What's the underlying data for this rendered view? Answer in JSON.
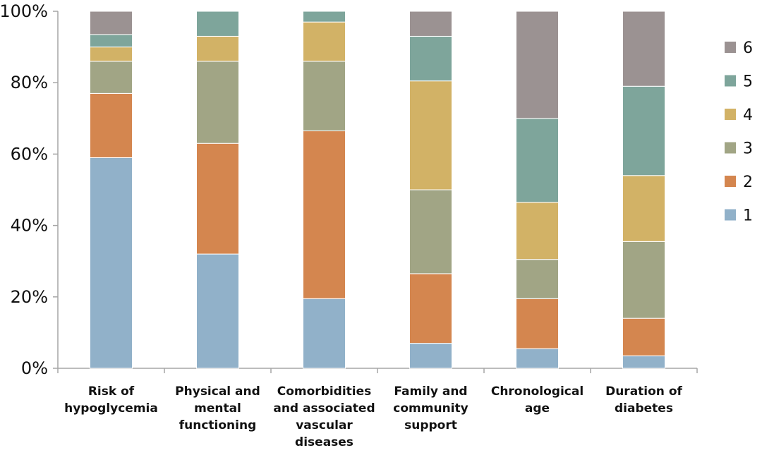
{
  "chart_data": {
    "type": "bar",
    "stacked": true,
    "percent": true,
    "title": "",
    "xlabel": "",
    "ylabel": "",
    "ylim": [
      0,
      100
    ],
    "y_ticks": [
      "0%",
      "20%",
      "40%",
      "60%",
      "80%",
      "100%"
    ],
    "grid": false,
    "legend_position": "right",
    "categories": [
      [
        "Risk of",
        "hypoglycemia"
      ],
      [
        "Physical and",
        "mental",
        "functioning"
      ],
      [
        "Comorbidities",
        "and associated",
        "vascular",
        "diseases"
      ],
      [
        "Family and",
        "community",
        "support"
      ],
      [
        "Chronological",
        "age"
      ],
      [
        "Duration of",
        "diabetes"
      ]
    ],
    "series": [
      {
        "name": "1",
        "color": "#91b1c9",
        "values": [
          59,
          32,
          19.5,
          7,
          5.5,
          3.5
        ]
      },
      {
        "name": "2",
        "color": "#d4864f",
        "values": [
          18,
          31,
          47,
          19.5,
          14,
          10.5
        ]
      },
      {
        "name": "3",
        "color": "#a1a585",
        "values": [
          9,
          23,
          19.5,
          23.5,
          11,
          21.5
        ]
      },
      {
        "name": "4",
        "color": "#d2b266",
        "values": [
          4,
          7,
          11,
          30.5,
          16,
          18.5
        ]
      },
      {
        "name": "5",
        "color": "#7ea59b",
        "values": [
          3.5,
          7,
          3,
          12.5,
          23.5,
          25
        ]
      },
      {
        "name": "6",
        "color": "#9b9292",
        "values": [
          6.5,
          0,
          0,
          7,
          30,
          21
        ]
      }
    ]
  }
}
